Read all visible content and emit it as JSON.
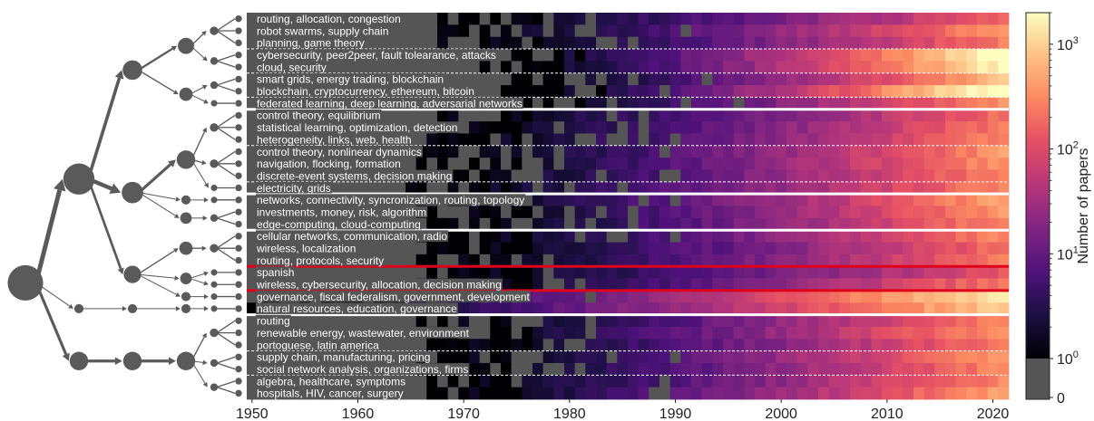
{
  "chart_data": {
    "type": "heatmap",
    "title": "",
    "xlabel": "",
    "ylabel": "",
    "x_range": [
      1950,
      2021
    ],
    "x_ticks": [
      1950,
      1960,
      1970,
      1980,
      1990,
      2000,
      2010,
      2020
    ],
    "color_scale": "log",
    "colormap": "magma",
    "zero_color": "#555555",
    "colorbar": {
      "label": "Number of papers",
      "ticks": [
        {
          "value": 0,
          "text": "0"
        },
        {
          "value": 1,
          "text": "10",
          "exp": "0"
        },
        {
          "value": 10,
          "text": "10",
          "exp": "1"
        },
        {
          "value": 100,
          "text": "10",
          "exp": "2"
        },
        {
          "value": 1000,
          "text": "10",
          "exp": "3"
        }
      ],
      "max": 2000
    },
    "topics": [
      {
        "label": "routing, allocation, congestion",
        "start": 1968,
        "level": 2.2
      },
      {
        "label": "robot swarms, supply chain",
        "start": 1968,
        "level": 2.6
      },
      {
        "label": "planning, game theory",
        "start": 1968,
        "level": 2.4
      },
      {
        "label": "cybersecurity, peer2peer, fault tolearance, attacks",
        "start": 1972,
        "level": 3.4
      },
      {
        "label": "cloud, security",
        "start": 1972,
        "level": 3.3
      },
      {
        "label": "smart grids, energy trading, blockchain",
        "start": 1974,
        "level": 2.9
      },
      {
        "label": "blockchain, cryptocurrency, ethereum, bitcoin",
        "start": 1974,
        "level": 3.5
      },
      {
        "label": "federated learning, deep learning, adversarial networks",
        "start": 1972,
        "level": 2.6
      },
      {
        "label": "control theory, equilibrium",
        "start": 1966,
        "level": 2.3
      },
      {
        "label": "statistical learning, optimization, detection",
        "start": 1966,
        "level": 2.4
      },
      {
        "label": "heterogeneity, links, web, health",
        "start": 1966,
        "level": 2.5
      },
      {
        "label": "control theory, nonlinear dynamics",
        "start": 1966,
        "level": 2.6
      },
      {
        "label": "navigation, flocking, formation",
        "start": 1966,
        "level": 2.6
      },
      {
        "label": "discrete-event systems, decision making",
        "start": 1966,
        "level": 2.5
      },
      {
        "label": "electricity, grids",
        "start": 1964,
        "level": 2.5
      },
      {
        "label": "networks, connectivity, syncronization, routing, topology",
        "start": 1966,
        "level": 2.7
      },
      {
        "label": "investments, money, risk, algorithm",
        "start": 1966,
        "level": 2.6
      },
      {
        "label": "edge-computing, cloud-computing",
        "start": 1966,
        "level": 2.5
      },
      {
        "label": "cellular networks, communication, radio",
        "start": 1966,
        "level": 2.5
      },
      {
        "label": "wireless, localization",
        "start": 1966,
        "level": 2.3
      },
      {
        "label": "routing, protocols, security",
        "start": 1966,
        "level": 2.4
      },
      {
        "label": "spanish",
        "start": 1966,
        "level": 2.1
      },
      {
        "label": "wireless, cybersecurity, allocation, decision making",
        "start": 1966,
        "level": 2.4
      },
      {
        "label": "governance, fiscal federalism, government, development",
        "start": 1950,
        "level": 3.2
      },
      {
        "label": "natural resources, education, governance",
        "start": 1950,
        "level": 3.0
      },
      {
        "label": "routing",
        "start": 1966,
        "level": 2.5
      },
      {
        "label": "renewable energy, wastewater, environment",
        "start": 1966,
        "level": 2.6
      },
      {
        "label": "portoguese, latin america",
        "start": 1966,
        "level": 2.4
      },
      {
        "label": "supply chain, manufacturing, pricing",
        "start": 1966,
        "level": 2.6
      },
      {
        "label": "social network analysis, organizations, firms",
        "start": 1966,
        "level": 2.5
      },
      {
        "label": "algebra, healthcare, symptoms",
        "start": 1966,
        "level": 2.5
      },
      {
        "label": "hospitals, HIV, cancer, surgery",
        "start": 1966,
        "level": 2.7
      }
    ],
    "dashed_separators_after": [
      2,
      4,
      6,
      10,
      13,
      17,
      20,
      22,
      24,
      27,
      29
    ],
    "white_separators_after": [
      7,
      14,
      17,
      24
    ],
    "red_separators_after": [
      20,
      22
    ]
  }
}
